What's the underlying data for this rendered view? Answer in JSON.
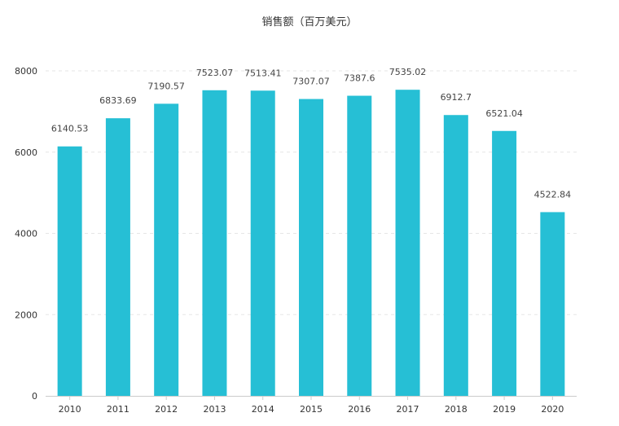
{
  "chart_data": {
    "type": "bar",
    "title": "销售额（百万美元）",
    "categories": [
      "2010",
      "2011",
      "2012",
      "2013",
      "2014",
      "2015",
      "2016",
      "2017",
      "2018",
      "2019",
      "2020"
    ],
    "values": [
      6140.53,
      6833.69,
      7190.57,
      7523.07,
      7513.41,
      7307.07,
      7387.6,
      7535.02,
      6912.7,
      6521.04,
      4522.84
    ],
    "data_labels": [
      "6140.53",
      "6833.69",
      "7190.57",
      "7523.07",
      "7513.41",
      "7307.07",
      "7387.6",
      "7535.02",
      "6912.7",
      "6521.04",
      "4522.84"
    ],
    "ylim": [
      0,
      8000
    ],
    "yticks": [
      "0",
      "2000",
      "4000",
      "6000",
      "8000"
    ],
    "grid": true,
    "colors": {
      "bar": "#26bfd5",
      "grid": "#e6e6e6",
      "axis": "#cccccc"
    }
  }
}
